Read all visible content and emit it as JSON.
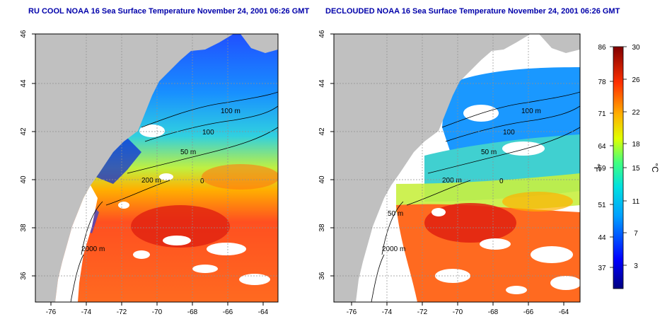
{
  "maps": [
    {
      "title": "RU COOL NOAA 16 Sea Surface Temperature November 24, 2001 06:26 GMT",
      "clouded": true
    },
    {
      "title": "DECLOUDED NOAA 16 Sea Surface Temperature November 24, 2001 06:26 GMT",
      "clouded": false
    }
  ],
  "axes": {
    "lat_ticks": [
      "46",
      "44",
      "42",
      "40",
      "38",
      "36"
    ],
    "lon_ticks": [
      "-76",
      "-74",
      "-72",
      "-70",
      "-68",
      "-66",
      "-64"
    ]
  },
  "contours": {
    "left": [
      "100 m",
      "100",
      "50 m",
      "200 m",
      "0",
      "2000 m"
    ],
    "right": [
      "100 m",
      "100",
      "50 m",
      "200 m",
      "0",
      "50 m",
      "2000 m"
    ]
  },
  "colorbar": {
    "f_label": "°F",
    "c_label": "°C",
    "f_ticks": [
      "86",
      "78",
      "71",
      "64",
      "59",
      "51",
      "44",
      "37"
    ],
    "c_ticks": [
      "30",
      "26",
      "22",
      "18",
      "15",
      "11",
      "7",
      "3"
    ]
  },
  "colors": {
    "title": "#0000aa",
    "land": "#c0c0c0",
    "cloud": "#ffffff"
  }
}
